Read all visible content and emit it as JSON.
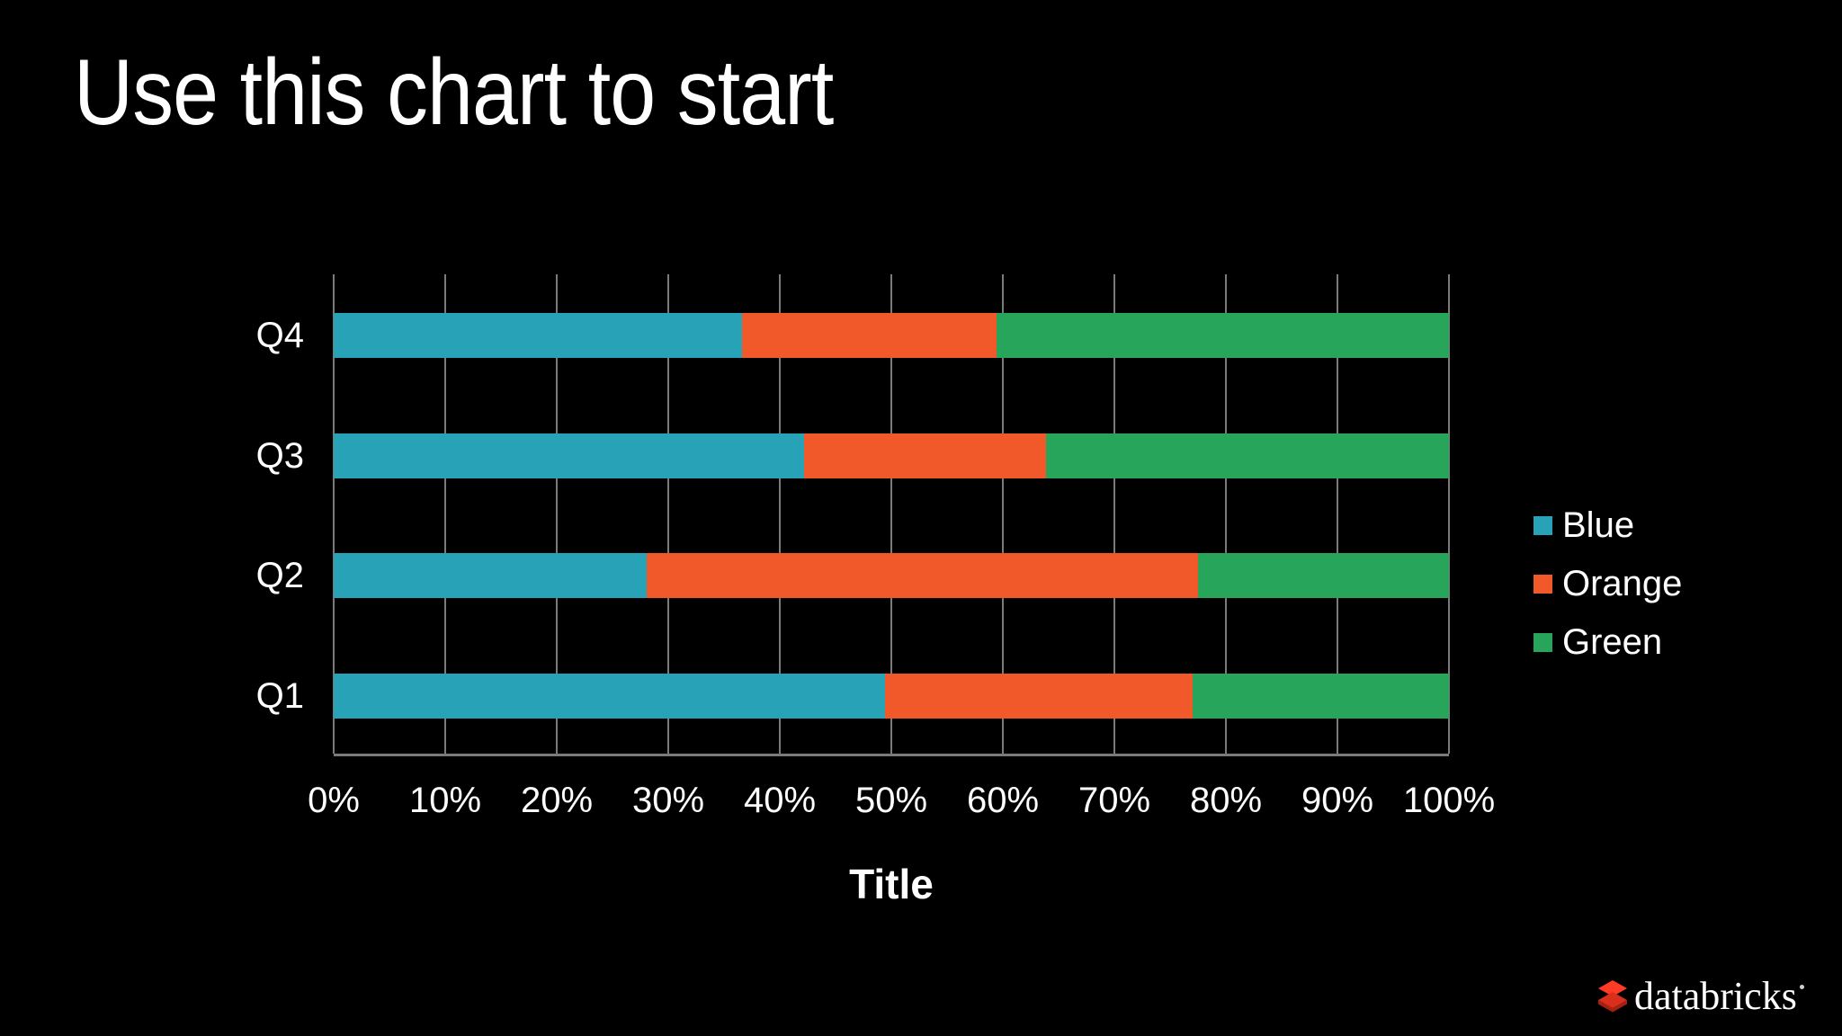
{
  "slide": {
    "title": "Use this chart to start",
    "background_color": "#000000",
    "text_color": "#ffffff"
  },
  "chart_data": {
    "type": "bar",
    "variant": "stacked-100-percent",
    "orientation": "horizontal",
    "title": "",
    "xlabel": "Title",
    "ylabel": "",
    "categories": [
      "Q1",
      "Q2",
      "Q3",
      "Q4"
    ],
    "category_axis_order_bottom_to_top": [
      "Q1",
      "Q2",
      "Q3",
      "Q4"
    ],
    "series": [
      {
        "name": "Blue",
        "color": "#27A2B6",
        "percent": [
          49.4,
          28.1,
          42.2,
          36.6
        ]
      },
      {
        "name": "Orange",
        "color": "#F1582A",
        "percent": [
          27.6,
          49.4,
          21.7,
          22.8
        ]
      },
      {
        "name": "Green",
        "color": "#26A55B",
        "percent": [
          23.0,
          22.5,
          36.1,
          40.7
        ]
      }
    ],
    "x_ticks": [
      "0%",
      "10%",
      "20%",
      "30%",
      "40%",
      "50%",
      "60%",
      "70%",
      "80%",
      "90%",
      "100%"
    ],
    "xlim": [
      0,
      100
    ],
    "grid": true,
    "grid_color": "#7a7a7a",
    "legend_position": "right",
    "legend_entries": [
      "Blue",
      "Orange",
      "Green"
    ]
  },
  "footer": {
    "logo_text": "databricks",
    "logo_icon_color": "#FF3B25"
  }
}
